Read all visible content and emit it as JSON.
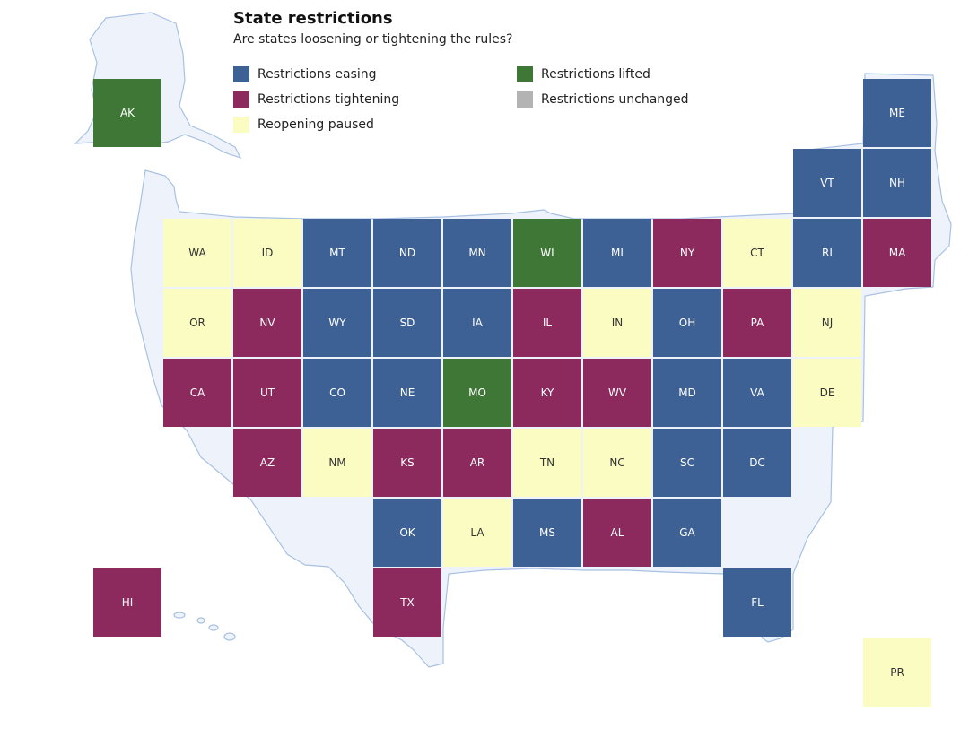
{
  "title": "State restrictions",
  "subtitle": "Are states loosening or tightening the rules?",
  "colors": {
    "easing": "#3d6194",
    "tightening": "#8c2a5e",
    "paused": "#fbfcc2",
    "lifted": "#3f7737",
    "unchanged": "#b3b3b3",
    "land": "#eef3fb",
    "outline": "#a8c1e3"
  },
  "legend": [
    {
      "status": "easing",
      "label": "Restrictions easing"
    },
    {
      "status": "tightening",
      "label": "Restrictions tightening"
    },
    {
      "status": "paused",
      "label": "Reopening paused"
    },
    {
      "status": "lifted",
      "label": "Restrictions lifted"
    },
    {
      "status": "unchanged",
      "label": "Restrictions unchanged"
    }
  ],
  "states": [
    {
      "abbr": "AK",
      "status": "lifted",
      "row": 0,
      "col": 0
    },
    {
      "abbr": "ME",
      "status": "easing",
      "row": 0,
      "col": 11
    },
    {
      "abbr": "VT",
      "status": "easing",
      "row": 1,
      "col": 10
    },
    {
      "abbr": "NH",
      "status": "easing",
      "row": 1,
      "col": 11
    },
    {
      "abbr": "WA",
      "status": "paused",
      "row": 2,
      "col": 1
    },
    {
      "abbr": "ID",
      "status": "paused",
      "row": 2,
      "col": 2
    },
    {
      "abbr": "MT",
      "status": "easing",
      "row": 2,
      "col": 3
    },
    {
      "abbr": "ND",
      "status": "easing",
      "row": 2,
      "col": 4
    },
    {
      "abbr": "MN",
      "status": "easing",
      "row": 2,
      "col": 5
    },
    {
      "abbr": "WI",
      "status": "lifted",
      "row": 2,
      "col": 6
    },
    {
      "abbr": "MI",
      "status": "easing",
      "row": 2,
      "col": 7
    },
    {
      "abbr": "NY",
      "status": "tightening",
      "row": 2,
      "col": 8
    },
    {
      "abbr": "CT",
      "status": "paused",
      "row": 2,
      "col": 9
    },
    {
      "abbr": "RI",
      "status": "easing",
      "row": 2,
      "col": 10
    },
    {
      "abbr": "MA",
      "status": "tightening",
      "row": 2,
      "col": 11
    },
    {
      "abbr": "OR",
      "status": "paused",
      "row": 3,
      "col": 1
    },
    {
      "abbr": "NV",
      "status": "tightening",
      "row": 3,
      "col": 2
    },
    {
      "abbr": "WY",
      "status": "easing",
      "row": 3,
      "col": 3
    },
    {
      "abbr": "SD",
      "status": "easing",
      "row": 3,
      "col": 4
    },
    {
      "abbr": "IA",
      "status": "easing",
      "row": 3,
      "col": 5
    },
    {
      "abbr": "IL",
      "status": "tightening",
      "row": 3,
      "col": 6
    },
    {
      "abbr": "IN",
      "status": "paused",
      "row": 3,
      "col": 7
    },
    {
      "abbr": "OH",
      "status": "easing",
      "row": 3,
      "col": 8
    },
    {
      "abbr": "PA",
      "status": "tightening",
      "row": 3,
      "col": 9
    },
    {
      "abbr": "NJ",
      "status": "paused",
      "row": 3,
      "col": 10
    },
    {
      "abbr": "CA",
      "status": "tightening",
      "row": 4,
      "col": 1
    },
    {
      "abbr": "UT",
      "status": "tightening",
      "row": 4,
      "col": 2
    },
    {
      "abbr": "CO",
      "status": "easing",
      "row": 4,
      "col": 3
    },
    {
      "abbr": "NE",
      "status": "easing",
      "row": 4,
      "col": 4
    },
    {
      "abbr": "MO",
      "status": "lifted",
      "row": 4,
      "col": 5
    },
    {
      "abbr": "KY",
      "status": "tightening",
      "row": 4,
      "col": 6
    },
    {
      "abbr": "WV",
      "status": "tightening",
      "row": 4,
      "col": 7
    },
    {
      "abbr": "MD",
      "status": "easing",
      "row": 4,
      "col": 8
    },
    {
      "abbr": "VA",
      "status": "easing",
      "row": 4,
      "col": 9
    },
    {
      "abbr": "DE",
      "status": "paused",
      "row": 4,
      "col": 10
    },
    {
      "abbr": "AZ",
      "status": "tightening",
      "row": 5,
      "col": 2
    },
    {
      "abbr": "NM",
      "status": "paused",
      "row": 5,
      "col": 3
    },
    {
      "abbr": "KS",
      "status": "tightening",
      "row": 5,
      "col": 4
    },
    {
      "abbr": "AR",
      "status": "tightening",
      "row": 5,
      "col": 5
    },
    {
      "abbr": "TN",
      "status": "paused",
      "row": 5,
      "col": 6
    },
    {
      "abbr": "NC",
      "status": "paused",
      "row": 5,
      "col": 7
    },
    {
      "abbr": "SC",
      "status": "easing",
      "row": 5,
      "col": 8
    },
    {
      "abbr": "DC",
      "status": "easing",
      "row": 5,
      "col": 9
    },
    {
      "abbr": "OK",
      "status": "easing",
      "row": 6,
      "col": 4
    },
    {
      "abbr": "LA",
      "status": "paused",
      "row": 6,
      "col": 5
    },
    {
      "abbr": "MS",
      "status": "easing",
      "row": 6,
      "col": 6
    },
    {
      "abbr": "AL",
      "status": "tightening",
      "row": 6,
      "col": 7
    },
    {
      "abbr": "GA",
      "status": "easing",
      "row": 6,
      "col": 8
    },
    {
      "abbr": "HI",
      "status": "tightening",
      "row": 7,
      "col": 0
    },
    {
      "abbr": "TX",
      "status": "tightening",
      "row": 7,
      "col": 4
    },
    {
      "abbr": "FL",
      "status": "easing",
      "row": 7,
      "col": 9
    },
    {
      "abbr": "PR",
      "status": "paused",
      "row": 8,
      "col": 11
    }
  ]
}
